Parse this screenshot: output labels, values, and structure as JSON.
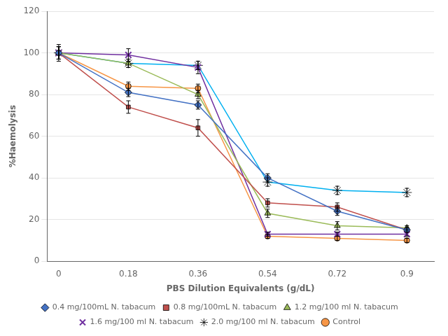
{
  "chart_data": {
    "type": "line",
    "xlabel": "PBS Dilution Equivalents (g/dL)",
    "ylabel": "%Haemolysis",
    "x": [
      0,
      0.18,
      0.36,
      0.54,
      0.72,
      0.9
    ],
    "series": [
      {
        "name": "0.4 mg/100mL N. tabacum",
        "color": "#4472C4",
        "marker": "diamond",
        "values": [
          100,
          81,
          75,
          40,
          24,
          15
        ],
        "yerr": [
          3,
          2,
          2,
          2,
          2,
          1
        ]
      },
      {
        "name": "0.8 mg/100mL N. tabacum",
        "color": "#C0504D",
        "marker": "square",
        "values": [
          100,
          74,
          64,
          28,
          26,
          15
        ],
        "yerr": [
          3,
          3,
          4,
          2,
          2,
          1
        ]
      },
      {
        "name": "1.2 mg/100 ml N. tabacum",
        "color": "#9BBB59",
        "marker": "triangle",
        "values": [
          100,
          95,
          80,
          23,
          17,
          16
        ],
        "yerr": [
          3,
          2,
          2,
          2,
          2,
          1
        ]
      },
      {
        "name": "1.6 mg/100 ml N. tabacum",
        "color": "#7030A0",
        "marker": "x",
        "values": [
          100,
          99,
          93,
          13,
          13,
          13
        ],
        "yerr": [
          4,
          3,
          3,
          1,
          1,
          1
        ]
      },
      {
        "name": "2.0 mg/100 ml N. tabacum",
        "color": "#00B0F0",
        "marker": "star",
        "values": [
          100,
          95,
          94,
          38,
          34,
          33
        ],
        "yerr": [
          3,
          2,
          2,
          2,
          2,
          2
        ]
      },
      {
        "name": "Control",
        "color": "#F79646",
        "marker": "circle",
        "values": [
          100,
          84,
          83,
          12,
          11,
          10
        ],
        "yerr": [
          3,
          2,
          2,
          1,
          1,
          1
        ]
      }
    ],
    "xlim": [
      -0.03,
      0.97
    ],
    "xticks": [
      0,
      0.18,
      0.36,
      0.54,
      0.72,
      0.9
    ],
    "ylim": [
      0,
      120
    ],
    "yticks": [
      0,
      20,
      40,
      60,
      80,
      100,
      120
    ],
    "grid": "y",
    "legend": "bottom"
  }
}
